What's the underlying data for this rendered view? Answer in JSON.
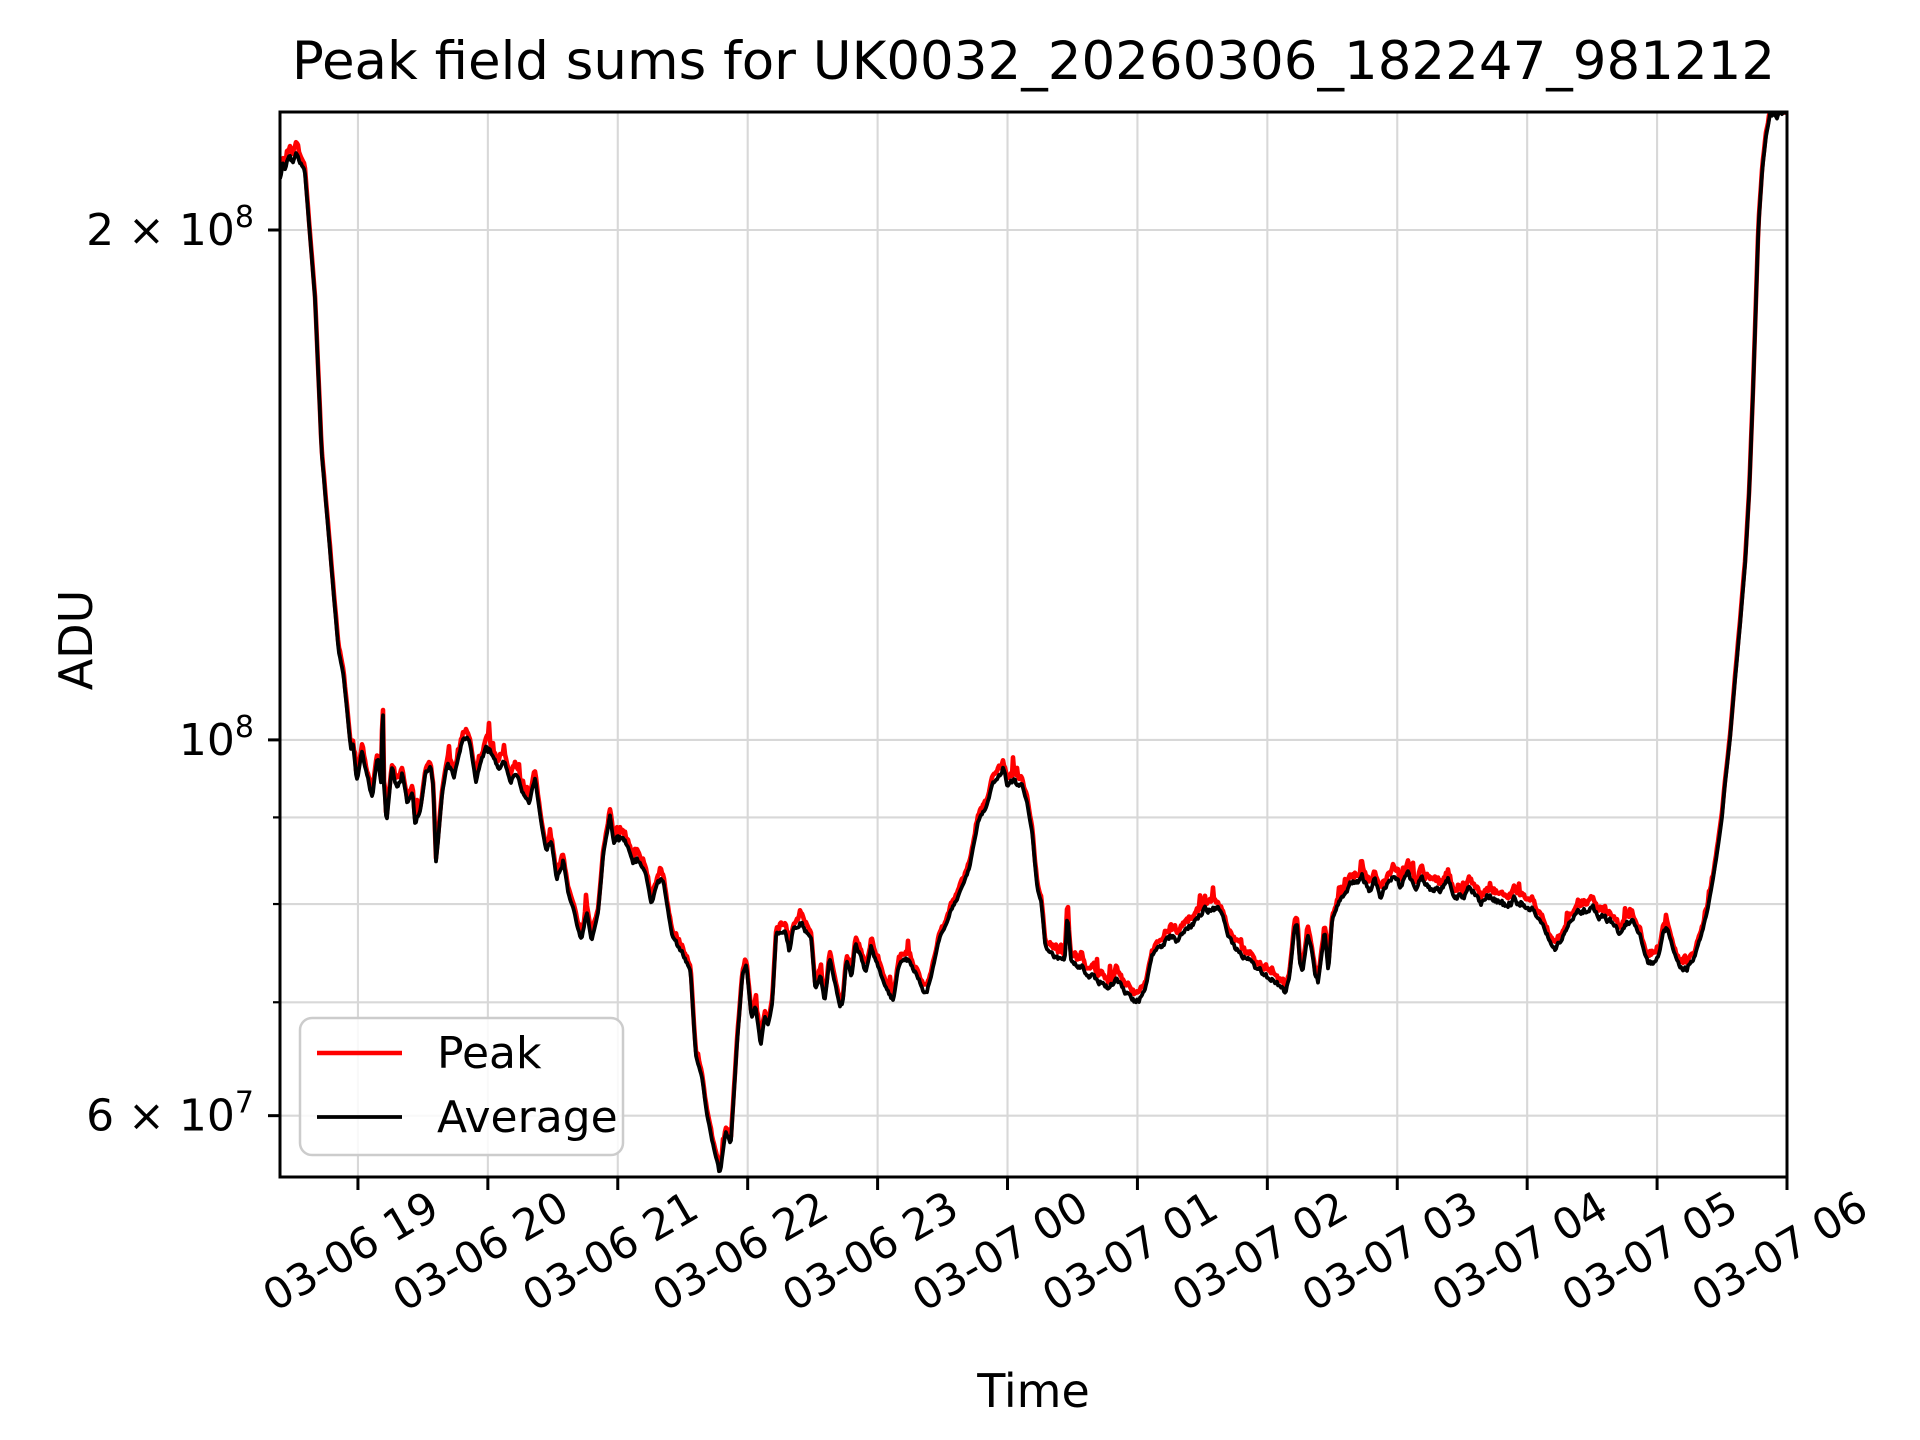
{
  "chart_data": {
    "type": "line",
    "title": "Peak field sums for UK0032_20260306_182247_981212",
    "xlabel": "Time",
    "ylabel": "ADU",
    "grid": true,
    "background": "#ffffff",
    "grid_color": "#d8d8d8",
    "x_axis": {
      "unit": "hours after 03-06 18:00",
      "min": 0.4,
      "max": 12.0,
      "tick_rotation_deg": 30,
      "ticks": [
        {
          "label": "03-06 19",
          "t": 1
        },
        {
          "label": "03-06 20",
          "t": 2
        },
        {
          "label": "03-06 21",
          "t": 3
        },
        {
          "label": "03-06 22",
          "t": 4
        },
        {
          "label": "03-06 23",
          "t": 5
        },
        {
          "label": "03-07 00",
          "t": 6
        },
        {
          "label": "03-07 01",
          "t": 7
        },
        {
          "label": "03-07 02",
          "t": 8
        },
        {
          "label": "03-07 03",
          "t": 9
        },
        {
          "label": "03-07 04",
          "t": 10
        },
        {
          "label": "03-07 05",
          "t": 11
        },
        {
          "label": "03-07 06",
          "t": 12
        }
      ]
    },
    "y_axis": {
      "scale": "log",
      "unit_1e7_adu": true,
      "min_1e7": 5.52,
      "max_1e7": 23.48,
      "ticks": [
        {
          "value_1e7": 20,
          "base": "2 × 10",
          "exp": "8",
          "labeled": true,
          "minor": true
        },
        {
          "value_1e7": 10,
          "base": "10",
          "exp": "8",
          "labeled": true,
          "minor": false
        },
        {
          "value_1e7": 9,
          "base": "",
          "exp": "",
          "labeled": false,
          "minor": true
        },
        {
          "value_1e7": 8,
          "base": "",
          "exp": "",
          "labeled": false,
          "minor": true
        },
        {
          "value_1e7": 7,
          "base": "",
          "exp": "",
          "labeled": false,
          "minor": true
        },
        {
          "value_1e7": 6,
          "base": "6 × 10",
          "exp": "7",
          "labeled": true,
          "minor": true
        }
      ]
    },
    "legend": {
      "position": "lower left",
      "entries": [
        {
          "label": "Peak",
          "color": "#ff0000"
        },
        {
          "label": "Average",
          "color": "#000000"
        }
      ]
    },
    "series": [
      {
        "name": "Peak",
        "color": "#ff0000",
        "relation": "runs 0.5–3% above Average with spiky noise",
        "offset_base": 0.006,
        "offset_noise": 0.016,
        "spike_extra": 0.022
      },
      {
        "name": "Average",
        "color": "#000000",
        "anchors_t_v1e7": [
          [
            0.4,
            21.5
          ],
          [
            0.42,
            21.9
          ],
          [
            0.44,
            21.7
          ],
          [
            0.47,
            22.1
          ],
          [
            0.5,
            21.9
          ],
          [
            0.52,
            22.2
          ],
          [
            0.55,
            22.0
          ],
          [
            0.57,
            21.8
          ],
          [
            0.59,
            21.7
          ],
          [
            0.67,
            18.2
          ],
          [
            0.72,
            14.8
          ],
          [
            0.79,
            12.8
          ],
          [
            0.85,
            11.3
          ],
          [
            0.89,
            10.9
          ],
          [
            0.94,
            9.96
          ],
          [
            0.95,
            9.83
          ],
          [
            0.96,
            9.97
          ],
          [
            0.99,
            9.44
          ],
          [
            1.03,
            9.83
          ],
          [
            1.08,
            9.47
          ],
          [
            1.11,
            9.24
          ],
          [
            1.15,
            9.78
          ],
          [
            1.18,
            9.4
          ],
          [
            1.19,
            10.74
          ],
          [
            1.2,
            9.4
          ],
          [
            1.22,
            8.92
          ],
          [
            1.26,
            9.64
          ],
          [
            1.3,
            9.37
          ],
          [
            1.34,
            9.57
          ],
          [
            1.38,
            9.17
          ],
          [
            1.42,
            9.3
          ],
          [
            1.44,
            8.9
          ],
          [
            1.48,
            9.1
          ],
          [
            1.52,
            9.57
          ],
          [
            1.56,
            9.64
          ],
          [
            1.58,
            9.38
          ],
          [
            1.6,
            8.47
          ],
          [
            1.65,
            9.32
          ],
          [
            1.69,
            9.7
          ],
          [
            1.74,
            9.53
          ],
          [
            1.79,
            9.9
          ],
          [
            1.82,
            10.07
          ],
          [
            1.86,
            9.97
          ],
          [
            1.91,
            9.45
          ],
          [
            1.95,
            9.73
          ],
          [
            1.99,
            9.9
          ],
          [
            2.04,
            9.8
          ],
          [
            2.09,
            9.57
          ],
          [
            2.13,
            9.7
          ],
          [
            2.18,
            9.43
          ],
          [
            2.22,
            9.57
          ],
          [
            2.27,
            9.3
          ],
          [
            2.32,
            9.17
          ],
          [
            2.36,
            9.53
          ],
          [
            2.4,
            9.05
          ],
          [
            2.45,
            8.58
          ],
          [
            2.49,
            8.73
          ],
          [
            2.53,
            8.26
          ],
          [
            2.58,
            8.5
          ],
          [
            2.62,
            8.11
          ],
          [
            2.67,
            7.88
          ],
          [
            2.72,
            7.6
          ],
          [
            2.76,
            7.92
          ],
          [
            2.8,
            7.57
          ],
          [
            2.85,
            7.92
          ],
          [
            2.89,
            8.58
          ],
          [
            2.94,
            9.0
          ],
          [
            2.97,
            8.7
          ],
          [
            3.0,
            8.75
          ],
          [
            3.03,
            8.73
          ],
          [
            3.08,
            8.66
          ],
          [
            3.12,
            8.47
          ],
          [
            3.17,
            8.5
          ],
          [
            3.22,
            8.3
          ],
          [
            3.26,
            8.0
          ],
          [
            3.31,
            8.27
          ],
          [
            3.35,
            8.25
          ],
          [
            3.39,
            7.9
          ],
          [
            3.42,
            7.65
          ],
          [
            3.47,
            7.54
          ],
          [
            3.52,
            7.43
          ],
          [
            3.56,
            7.3
          ],
          [
            3.6,
            6.52
          ],
          [
            3.65,
            6.3
          ],
          [
            3.69,
            5.98
          ],
          [
            3.74,
            5.74
          ],
          [
            3.79,
            5.56
          ],
          [
            3.83,
            5.88
          ],
          [
            3.87,
            5.78
          ],
          [
            3.92,
            6.65
          ],
          [
            3.96,
            7.27
          ],
          [
            3.99,
            7.37
          ],
          [
            4.03,
            6.84
          ],
          [
            4.06,
            6.98
          ],
          [
            4.1,
            6.6
          ],
          [
            4.13,
            6.86
          ],
          [
            4.16,
            6.8
          ],
          [
            4.19,
            7.0
          ],
          [
            4.22,
            7.71
          ],
          [
            4.26,
            7.62
          ],
          [
            4.29,
            7.7
          ],
          [
            4.32,
            7.5
          ],
          [
            4.35,
            7.73
          ],
          [
            4.41,
            7.8
          ],
          [
            4.45,
            7.7
          ],
          [
            4.49,
            7.62
          ],
          [
            4.52,
            7.13
          ],
          [
            4.56,
            7.28
          ],
          [
            4.59,
            6.98
          ],
          [
            4.63,
            7.42
          ],
          [
            4.66,
            7.25
          ],
          [
            4.7,
            7.02
          ],
          [
            4.73,
            6.99
          ],
          [
            4.76,
            7.42
          ],
          [
            4.8,
            7.25
          ],
          [
            4.83,
            7.6
          ],
          [
            4.87,
            7.45
          ],
          [
            4.91,
            7.28
          ],
          [
            4.95,
            7.55
          ],
          [
            4.99,
            7.4
          ],
          [
            5.03,
            7.25
          ],
          [
            5.08,
            7.1
          ],
          [
            5.12,
            7.0
          ],
          [
            5.16,
            7.35
          ],
          [
            5.21,
            7.45
          ],
          [
            5.25,
            7.38
          ],
          [
            5.31,
            7.25
          ],
          [
            5.35,
            7.12
          ],
          [
            5.38,
            7.1
          ],
          [
            5.42,
            7.3
          ],
          [
            5.46,
            7.55
          ],
          [
            5.49,
            7.7
          ],
          [
            5.53,
            7.8
          ],
          [
            5.57,
            7.95
          ],
          [
            5.62,
            8.1
          ],
          [
            5.66,
            8.2
          ],
          [
            5.71,
            8.43
          ],
          [
            5.77,
            8.93
          ],
          [
            5.8,
            9.05
          ],
          [
            5.83,
            9.1
          ],
          [
            5.85,
            9.21
          ],
          [
            5.89,
            9.44
          ],
          [
            5.93,
            9.51
          ],
          [
            5.97,
            9.63
          ],
          [
            6.0,
            9.4
          ],
          [
            6.04,
            9.42
          ],
          [
            6.08,
            9.44
          ],
          [
            6.11,
            9.4
          ],
          [
            6.15,
            9.17
          ],
          [
            6.19,
            8.81
          ],
          [
            6.21,
            8.47
          ],
          [
            6.23,
            8.17
          ],
          [
            6.26,
            8.03
          ],
          [
            6.29,
            7.57
          ],
          [
            6.33,
            7.48
          ],
          [
            6.37,
            7.46
          ],
          [
            6.44,
            7.42
          ],
          [
            6.46,
            7.86
          ],
          [
            6.49,
            7.4
          ],
          [
            6.53,
            7.34
          ],
          [
            6.58,
            7.33
          ],
          [
            6.63,
            7.25
          ],
          [
            6.71,
            7.19
          ],
          [
            6.79,
            7.14
          ],
          [
            6.84,
            7.25
          ],
          [
            6.89,
            7.12
          ],
          [
            6.96,
            7.04
          ],
          [
            7.0,
            7.0
          ],
          [
            7.06,
            7.12
          ],
          [
            7.11,
            7.45
          ],
          [
            7.15,
            7.55
          ],
          [
            7.2,
            7.59
          ],
          [
            7.25,
            7.65
          ],
          [
            7.3,
            7.62
          ],
          [
            7.35,
            7.69
          ],
          [
            7.4,
            7.76
          ],
          [
            7.46,
            7.84
          ],
          [
            7.5,
            7.92
          ],
          [
            7.56,
            7.95
          ],
          [
            7.6,
            7.96
          ],
          [
            7.65,
            7.9
          ],
          [
            7.7,
            7.65
          ],
          [
            7.75,
            7.54
          ],
          [
            7.8,
            7.48
          ],
          [
            7.85,
            7.42
          ],
          [
            7.9,
            7.34
          ],
          [
            7.96,
            7.29
          ],
          [
            8.0,
            7.24
          ],
          [
            8.06,
            7.19
          ],
          [
            8.11,
            7.14
          ],
          [
            8.14,
            7.09
          ],
          [
            8.17,
            7.25
          ],
          [
            8.21,
            7.75
          ],
          [
            8.23,
            7.78
          ],
          [
            8.25,
            7.4
          ],
          [
            8.27,
            7.29
          ],
          [
            8.31,
            7.65
          ],
          [
            8.34,
            7.52
          ],
          [
            8.37,
            7.24
          ],
          [
            8.39,
            7.19
          ],
          [
            8.44,
            7.69
          ],
          [
            8.47,
            7.3
          ],
          [
            8.5,
            7.85
          ],
          [
            8.53,
            7.95
          ],
          [
            8.56,
            8.05
          ],
          [
            8.6,
            8.12
          ],
          [
            8.64,
            8.22
          ],
          [
            8.71,
            8.25
          ],
          [
            8.73,
            8.3
          ],
          [
            8.79,
            8.15
          ],
          [
            8.83,
            8.25
          ],
          [
            8.87,
            8.07
          ],
          [
            8.92,
            8.22
          ],
          [
            8.98,
            8.3
          ],
          [
            9.02,
            8.2
          ],
          [
            9.08,
            8.33
          ],
          [
            9.14,
            8.2
          ],
          [
            9.19,
            8.27
          ],
          [
            9.25,
            8.17
          ],
          [
            9.33,
            8.15
          ],
          [
            9.39,
            8.27
          ],
          [
            9.44,
            8.08
          ],
          [
            9.51,
            8.05
          ],
          [
            9.56,
            8.2
          ],
          [
            9.64,
            8.0
          ],
          [
            9.71,
            8.1
          ],
          [
            9.77,
            8.03
          ],
          [
            9.84,
            7.99
          ],
          [
            9.91,
            8.05
          ],
          [
            9.98,
            8.0
          ],
          [
            10.04,
            7.94
          ],
          [
            10.12,
            7.76
          ],
          [
            10.2,
            7.56
          ],
          [
            10.23,
            7.55
          ],
          [
            10.28,
            7.68
          ],
          [
            10.33,
            7.81
          ],
          [
            10.39,
            7.91
          ],
          [
            10.43,
            7.93
          ],
          [
            10.51,
            7.95
          ],
          [
            10.56,
            7.86
          ],
          [
            10.64,
            7.83
          ],
          [
            10.7,
            7.71
          ],
          [
            10.77,
            7.81
          ],
          [
            10.81,
            7.8
          ],
          [
            10.87,
            7.66
          ],
          [
            10.91,
            7.45
          ],
          [
            10.93,
            7.39
          ],
          [
            10.97,
            7.38
          ],
          [
            11.01,
            7.44
          ],
          [
            11.05,
            7.71
          ],
          [
            11.08,
            7.73
          ],
          [
            11.12,
            7.55
          ],
          [
            11.18,
            7.34
          ],
          [
            11.23,
            7.33
          ],
          [
            11.26,
            7.39
          ],
          [
            11.28,
            7.41
          ],
          [
            11.33,
            7.62
          ],
          [
            11.38,
            7.88
          ],
          [
            11.42,
            8.17
          ],
          [
            11.46,
            8.56
          ],
          [
            11.5,
            9.0
          ],
          [
            11.52,
            9.38
          ],
          [
            11.56,
            10.0
          ],
          [
            11.6,
            10.85
          ],
          [
            11.64,
            11.72
          ],
          [
            11.68,
            12.77
          ],
          [
            11.71,
            14.04
          ],
          [
            11.74,
            16.16
          ],
          [
            11.78,
            20.06
          ],
          [
            11.81,
            21.7
          ],
          [
            11.84,
            22.76
          ],
          [
            11.87,
            23.36
          ],
          [
            11.92,
            23.42
          ],
          [
            12.0,
            23.45
          ]
        ]
      }
    ]
  }
}
